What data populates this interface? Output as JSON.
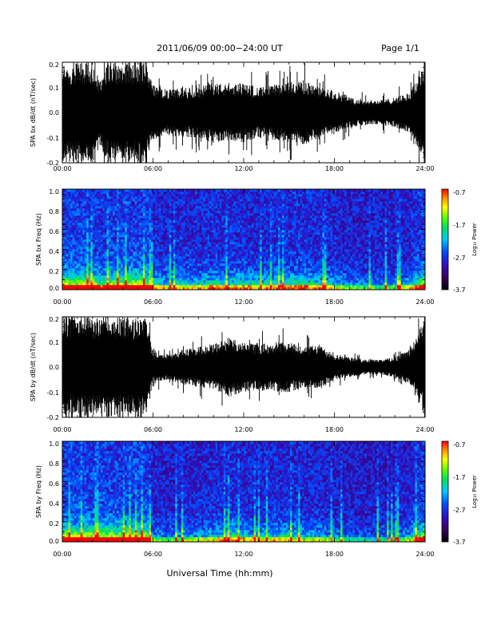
{
  "header": {
    "title": "2011/06/09  00:00−24:00 UT",
    "page": "Page 1/1"
  },
  "footer": {
    "xlabel": "Universal Time (hh:mm)"
  },
  "chart_data": [
    {
      "type": "line",
      "ylabel": "SPA bx dB/dt (nT/sec)",
      "ylim": [
        -0.2,
        0.2
      ],
      "yticks": [
        "0.2",
        "0.1",
        "0.0",
        "-0.1",
        "-0.2"
      ],
      "xticks": [
        "00:00",
        "06:00",
        "12:00",
        "18:00",
        "24:00"
      ],
      "xlim_hours": [
        0,
        24
      ],
      "series": [
        {
          "color": "#000000",
          "envelope_hours": [
            0,
            1,
            2,
            2.5,
            3,
            4,
            5,
            5.5,
            6,
            7,
            8,
            9,
            10,
            11,
            12,
            13,
            14,
            15,
            16,
            17,
            18,
            19,
            20,
            21,
            22,
            23,
            24
          ],
          "envelope_amplitude": [
            0.2,
            0.2,
            0.2,
            0.13,
            0.2,
            0.2,
            0.2,
            0.2,
            0.11,
            0.09,
            0.1,
            0.1,
            0.12,
            0.11,
            0.12,
            0.1,
            0.11,
            0.12,
            0.13,
            0.1,
            0.09,
            0.06,
            0.05,
            0.05,
            0.06,
            0.08,
            0.2
          ]
        }
      ]
    },
    {
      "type": "heatmap",
      "ylabel": "SPA bx Freq (Hz)",
      "ylim": [
        0.0,
        1.0
      ],
      "yticks": [
        "1.0",
        "0.8",
        "0.6",
        "0.4",
        "0.2",
        "0.0"
      ],
      "xticks": [
        "00:00",
        "06:00",
        "12:00",
        "18:00",
        "24:00"
      ],
      "xlim_hours": [
        0,
        24
      ],
      "colorbar": {
        "label": "Log₁₀ Power",
        "ticks": [
          "-0.7",
          "-1.7",
          "-2.7",
          "-3.7"
        ],
        "range": [
          -3.7,
          -0.7
        ]
      }
    },
    {
      "type": "line",
      "ylabel": "SPA by dB/dt (nT/sec)",
      "ylim": [
        -0.2,
        0.2
      ],
      "yticks": [
        "0.2",
        "0.1",
        "0.0",
        "-0.1",
        "-0.2"
      ],
      "xticks": [
        "00:00",
        "06:00",
        "12:00",
        "18:00",
        "24:00"
      ],
      "xlim_hours": [
        0,
        24
      ],
      "series": [
        {
          "color": "#000000",
          "envelope_hours": [
            0,
            1,
            2,
            3,
            4,
            5,
            5.5,
            6,
            7,
            8,
            9,
            10,
            11,
            12,
            13,
            14,
            15,
            16,
            17,
            18,
            19,
            20,
            21,
            22,
            23,
            24
          ],
          "envelope_amplitude": [
            0.2,
            0.2,
            0.2,
            0.2,
            0.2,
            0.2,
            0.2,
            0.06,
            0.05,
            0.07,
            0.08,
            0.09,
            0.12,
            0.1,
            0.09,
            0.1,
            0.1,
            0.08,
            0.09,
            0.05,
            0.04,
            0.03,
            0.03,
            0.04,
            0.07,
            0.2
          ]
        }
      ]
    },
    {
      "type": "heatmap",
      "ylabel": "SPA by Freq (Hz)",
      "ylim": [
        0.0,
        1.0
      ],
      "yticks": [
        "1.0",
        "0.8",
        "0.6",
        "0.4",
        "0.2",
        "0.0"
      ],
      "xticks": [
        "00:00",
        "06:00",
        "12:00",
        "18:00",
        "24:00"
      ],
      "xlim_hours": [
        0,
        24
      ],
      "colorbar": {
        "label": "Log₁₀ Power",
        "ticks": [
          "-0.7",
          "-1.7",
          "-2.7",
          "-3.7"
        ],
        "range": [
          -3.7,
          -0.7
        ]
      }
    }
  ]
}
